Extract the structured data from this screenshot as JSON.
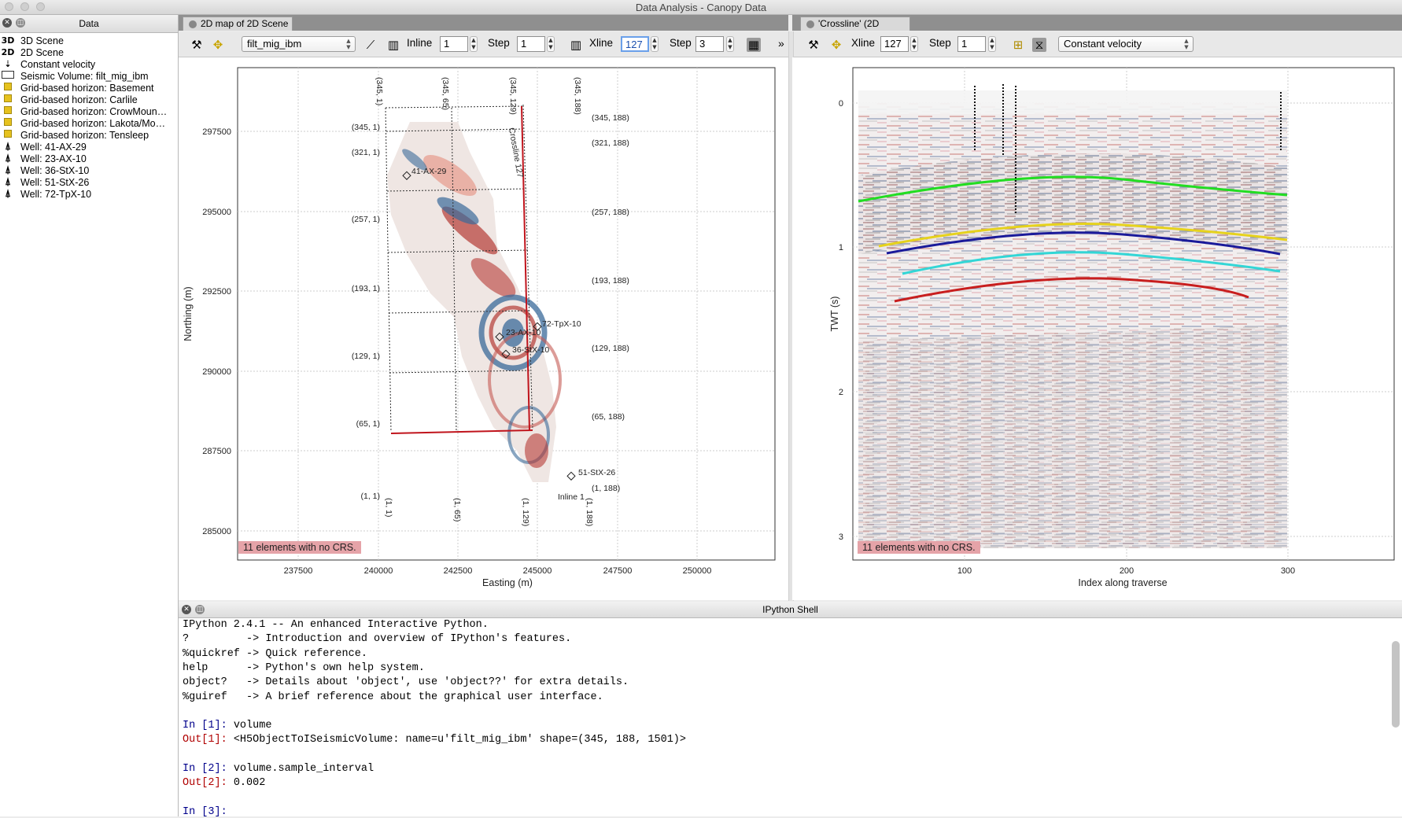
{
  "window": {
    "title": "Data Analysis - Canopy Data"
  },
  "data_panel": {
    "title": "Data",
    "items": [
      {
        "icon": "3d-icon",
        "prefix": "3D",
        "label": "3D Scene"
      },
      {
        "icon": "2d-icon",
        "prefix": "2D",
        "label": "2D Scene"
      },
      {
        "icon": "velocity-icon",
        "prefix": "⇣",
        "label": "Constant velocity"
      },
      {
        "icon": "seismic-volume-icon",
        "prefix": "",
        "label": "Seismic Volume: filt_mig_ibm"
      },
      {
        "icon": "horizon-icon",
        "prefix": "",
        "label": "Grid-based horizon: Basement"
      },
      {
        "icon": "horizon-icon",
        "prefix": "",
        "label": "Grid-based horizon: Carlile"
      },
      {
        "icon": "horizon-icon",
        "prefix": "",
        "label": "Grid-based horizon: CrowMoun…"
      },
      {
        "icon": "horizon-icon",
        "prefix": "",
        "label": "Grid-based horizon: Lakota/Mo…"
      },
      {
        "icon": "horizon-icon",
        "prefix": "",
        "label": "Grid-based horizon: Tensleep"
      },
      {
        "icon": "well-icon",
        "prefix": "",
        "label": "Well: 41-AX-29"
      },
      {
        "icon": "well-icon",
        "prefix": "",
        "label": "Well: 23-AX-10"
      },
      {
        "icon": "well-icon",
        "prefix": "",
        "label": "Well: 36-StX-10"
      },
      {
        "icon": "well-icon",
        "prefix": "",
        "label": "Well: 51-StX-26"
      },
      {
        "icon": "well-icon",
        "prefix": "",
        "label": "Well: 72-TpX-10"
      }
    ]
  },
  "map_tab": {
    "tab_label": "2D map of 2D Scene",
    "toolbar": {
      "volume_select": "filt_mig_ibm",
      "inline_label": "Inline",
      "inline_value": "1",
      "step1_label": "Step",
      "step1_value": "1",
      "xline_label": "Xline",
      "xline_value": "127",
      "step2_label": "Step",
      "step2_value": "3",
      "more": "»"
    },
    "no_crs": "11 elements with no CRS.",
    "xlabel": "Easting (m)",
    "ylabel": "Northing (m)",
    "xticks": [
      "237500",
      "240000",
      "242500",
      "245000",
      "247500",
      "250000"
    ],
    "yticks": [
      "297500",
      "295000",
      "292500",
      "290000",
      "287500",
      "285000"
    ],
    "corner_labels_left": [
      "(345, 1)",
      "(321, 1)",
      "(257, 1)",
      "(193, 1)",
      "(129, 1)",
      "(65, 1)",
      "(1, 1)"
    ],
    "corner_labels_right": [
      "(345, 188)",
      "(321, 188)",
      "(257, 188)",
      "(193, 188)",
      "(129, 188)",
      "(65, 188)",
      "(1, 188)"
    ],
    "top_labels": [
      "(345, 1)",
      "(345, 65)",
      "(345, 129)",
      "(345, 188)"
    ],
    "bottom_labels": [
      "(1, 1)",
      "(1, 65)",
      "(1, 129)",
      "(1, 188)"
    ],
    "crossline_label": "Crossline 127",
    "inline_label": "Inline 1",
    "wells": [
      "41-AX-29",
      "72-TpX-10",
      "23-AX-10",
      "36-StX-10",
      "51-StX-26"
    ]
  },
  "section_tab": {
    "tab_label": "'Crossline' (2D Scene)",
    "toolbar": {
      "xline_label": "Xline",
      "xline_value": "127",
      "step_label": "Step",
      "step_value": "1",
      "velocity_select": "Constant velocity"
    },
    "no_crs": "11 elements with no CRS.",
    "xlabel": "Index along traverse",
    "ylabel": "TWT (s)",
    "xticks": [
      "100",
      "200",
      "300"
    ],
    "yticks": [
      "0",
      "1",
      "2",
      "3"
    ],
    "horizon_colors": [
      "#22dd22",
      "#e6d21c",
      "#1a1a9a",
      "#33d6d6",
      "#c81e1e"
    ]
  },
  "shell": {
    "title": "IPython Shell",
    "lines": [
      {
        "text": "IPython 2.4.1 -- An enhanced Interactive Python.",
        "cls": ""
      },
      {
        "text": "?         -> Introduction and overview of IPython's features.",
        "cls": ""
      },
      {
        "text": "%quickref -> Quick reference.",
        "cls": ""
      },
      {
        "text": "help      -> Python's own help system.",
        "cls": ""
      },
      {
        "text": "object?   -> Details about 'object', use 'object??' for extra details.",
        "cls": ""
      },
      {
        "text": "%guiref   -> A brief reference about the graphical user interface.",
        "cls": ""
      },
      {
        "text": "",
        "cls": ""
      },
      {
        "text": "In [1]: volume",
        "cls": "blue"
      },
      {
        "text": "Out[1]: <H5ObjectToISeismicVolume: name=u'filt_mig_ibm' shape=(345, 188, 1501)>",
        "cls": "red"
      },
      {
        "text": "",
        "cls": ""
      },
      {
        "text": "In [2]: volume.sample_interval",
        "cls": "blue"
      },
      {
        "text": "Out[2]: 0.002",
        "cls": "red"
      },
      {
        "text": "",
        "cls": ""
      },
      {
        "text": "In [3]:",
        "cls": "blue"
      }
    ]
  }
}
